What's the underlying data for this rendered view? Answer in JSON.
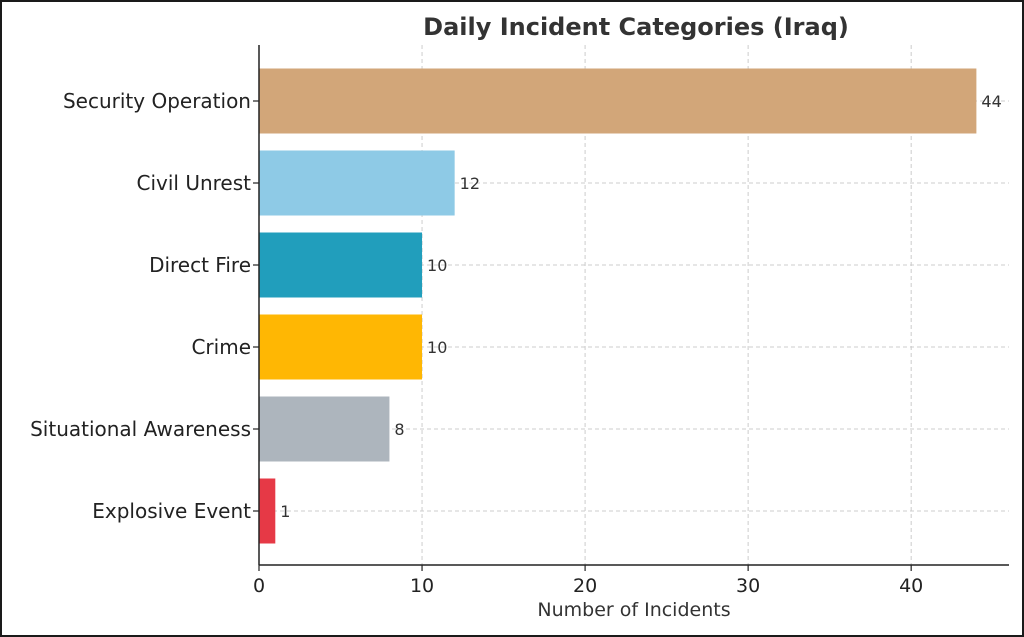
{
  "chart_data": {
    "type": "bar",
    "orientation": "horizontal",
    "title": "Daily Incident Categories (Iraq)",
    "xlabel": "Number of Incidents",
    "ylabel": "",
    "xlim": [
      0,
      46
    ],
    "xticks": [
      0,
      10,
      20,
      30,
      40
    ],
    "grid": true,
    "categories": [
      "Security Operation",
      "Civil Unrest",
      "Direct Fire",
      "Crime",
      "Situational Awareness",
      "Explosive Event"
    ],
    "values": [
      44,
      12,
      10,
      10,
      8,
      1
    ],
    "colors": [
      "#d2a679",
      "#8ecae6",
      "#219ebc",
      "#ffb703",
      "#adb5bd",
      "#e63946"
    ]
  }
}
